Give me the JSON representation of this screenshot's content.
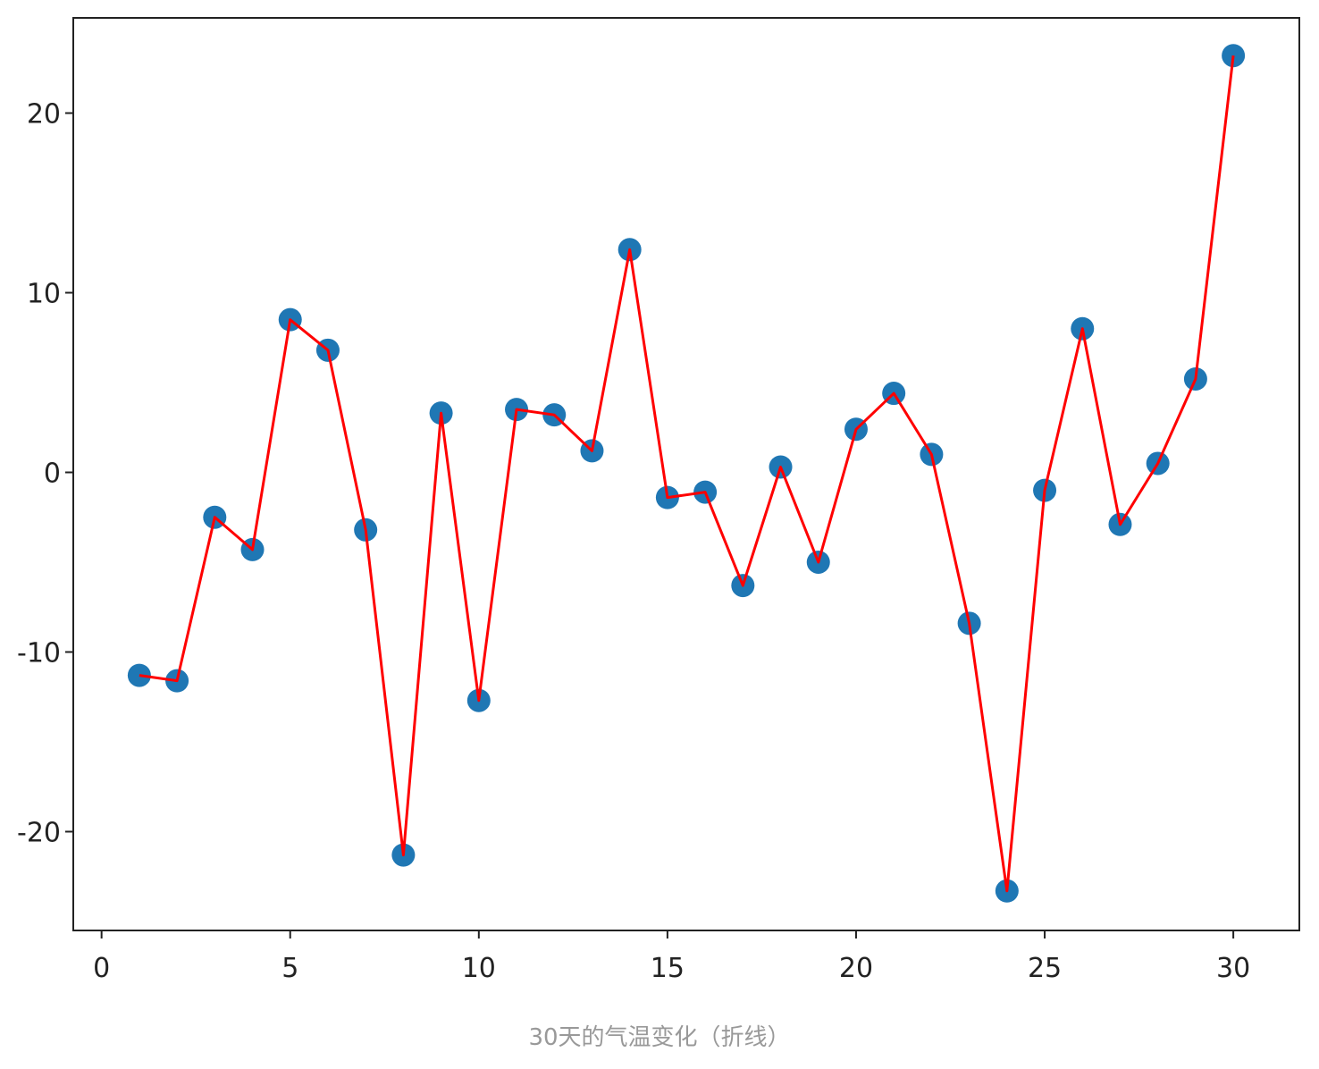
{
  "caption": "30天的气温变化（折线）",
  "colors": {
    "line": "#ff0000",
    "marker": "#1f77b4",
    "axis": "#222222"
  },
  "chart_data": {
    "type": "line",
    "title": "",
    "xlabel": "",
    "ylabel": "",
    "xlim": [
      -0.75,
      31.75
    ],
    "ylim": [
      -25.5,
      25.3
    ],
    "xticks": [
      0,
      5,
      10,
      15,
      20,
      25,
      30
    ],
    "yticks": [
      -20,
      -10,
      0,
      10,
      20
    ],
    "grid": false,
    "series": [
      {
        "x": [
          1,
          2,
          3,
          4,
          5,
          6,
          7,
          8,
          9,
          10,
          11,
          12,
          13,
          14,
          15,
          16,
          17,
          18,
          19,
          20,
          21,
          22,
          23,
          24,
          25,
          26,
          27,
          28,
          29,
          30
        ],
        "y": [
          -11.3,
          -11.6,
          -2.5,
          -4.3,
          8.5,
          6.8,
          -3.2,
          -21.3,
          3.3,
          -12.7,
          3.5,
          3.2,
          1.2,
          12.4,
          -1.4,
          -1.1,
          -6.3,
          0.3,
          -5.0,
          2.4,
          4.4,
          1.0,
          -8.4,
          -23.3,
          -1.0,
          8.0,
          -2.9,
          0.5,
          5.2,
          23.2
        ]
      }
    ]
  }
}
